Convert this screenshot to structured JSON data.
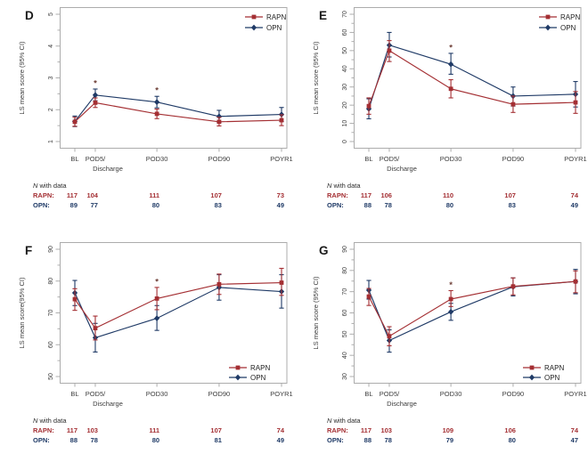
{
  "colors": {
    "rapn": "#A42F33",
    "opn": "#1F3A66",
    "axis": "#ACACAC",
    "tick_text": "#3D3D3D",
    "panel_letter": "#1A1A1A",
    "legend_text": "#1F1F1F",
    "n_title_text": "#2B2B2B",
    "asterisk": "#6F4038",
    "background": "#FFFFFF"
  },
  "legend": {
    "rapn_label": "RAPN",
    "opn_label": "OPN"
  },
  "n_with_data": {
    "title_italic": "N",
    "title_rest": " with data",
    "rapn_row_label": "RAPN:",
    "opn_row_label": "OPN:"
  },
  "chart_data": [
    {
      "type": "line",
      "panel_label": "D",
      "ylabel": "LS mean score (95% CI)",
      "ylim": [
        1,
        5
      ],
      "yticks": [
        1,
        2,
        3,
        4,
        5
      ],
      "minor_ticks": true,
      "x_tick_labels": [
        "BL",
        "POD5/",
        "POD30",
        "POD90",
        "POYR1"
      ],
      "x_sub_label": "Discharge",
      "x_positions": [
        0,
        0.099,
        0.397,
        0.698,
        1.0
      ],
      "grid": false,
      "legend_position": "top-right",
      "significant_x_indices": [
        1,
        2
      ],
      "series": [
        {
          "name": "RAPN",
          "marker": "square",
          "color_key": "rapn",
          "values": [
            1.62,
            2.22,
            1.87,
            1.62,
            1.67
          ],
          "ci_low": [
            1.48,
            2.07,
            1.72,
            1.49,
            1.5
          ],
          "ci_high": [
            1.76,
            2.37,
            2.02,
            1.76,
            1.84
          ],
          "n_with_data": [
            117,
            104,
            111,
            107,
            73
          ]
        },
        {
          "name": "OPN",
          "marker": "diamond",
          "color_key": "opn",
          "values": [
            1.63,
            2.46,
            2.24,
            1.79,
            1.85
          ],
          "ci_low": [
            1.47,
            2.28,
            2.06,
            1.6,
            1.63
          ],
          "ci_high": [
            1.8,
            2.65,
            2.42,
            1.98,
            2.07
          ],
          "n_with_data": [
            89,
            77,
            80,
            83,
            49
          ]
        }
      ]
    },
    {
      "type": "line",
      "panel_label": "E",
      "ylabel": "LS mean score (95% CI)",
      "ylim": [
        0,
        70
      ],
      "yticks": [
        0,
        10,
        20,
        30,
        40,
        50,
        60,
        70
      ],
      "minor_ticks": true,
      "x_tick_labels": [
        "BL",
        "POD5/",
        "POD30",
        "POD90",
        "POYR1"
      ],
      "x_sub_label": "Discharge",
      "x_positions": [
        0,
        0.099,
        0.397,
        0.698,
        1.0
      ],
      "grid": false,
      "legend_position": "top-right",
      "significant_x_indices": [
        2
      ],
      "series": [
        {
          "name": "RAPN",
          "marker": "square",
          "color_key": "rapn",
          "values": [
            19.5,
            50.0,
            29.0,
            20.5,
            21.5
          ],
          "ci_low": [
            15.0,
            44.0,
            24.0,
            16.0,
            15.5
          ],
          "ci_high": [
            24.0,
            55.5,
            34.0,
            25.0,
            27.5
          ],
          "n_with_data": [
            117,
            106,
            110,
            107,
            74
          ]
        },
        {
          "name": "OPN",
          "marker": "diamond",
          "color_key": "opn",
          "values": [
            18.0,
            53.0,
            42.5,
            25.0,
            26.0
          ],
          "ci_low": [
            12.5,
            46.5,
            37.0,
            19.5,
            19.0
          ],
          "ci_high": [
            23.5,
            60.0,
            48.5,
            30.0,
            33.0
          ],
          "n_with_data": [
            88,
            78,
            80,
            83,
            49
          ]
        }
      ]
    },
    {
      "type": "line",
      "panel_label": "F",
      "ylabel": "LS mean score(95% CI)",
      "ylim": [
        50,
        90
      ],
      "yticks": [
        50,
        60,
        70,
        80,
        90
      ],
      "minor_ticks": true,
      "x_tick_labels": [
        "BL",
        "POD5/",
        "POD30",
        "POD90",
        "POYR1"
      ],
      "x_sub_label": "Discharge",
      "x_positions": [
        0,
        0.099,
        0.397,
        0.698,
        1.0
      ],
      "grid": false,
      "legend_position": "bottom-right",
      "significant_x_indices": [
        2
      ],
      "series": [
        {
          "name": "RAPN",
          "marker": "square",
          "color_key": "rapn",
          "values": [
            74.3,
            65.2,
            74.5,
            79.0,
            79.5
          ],
          "ci_low": [
            70.8,
            61.5,
            71.0,
            75.8,
            75.5
          ],
          "ci_high": [
            77.6,
            69.0,
            78.0,
            82.2,
            84.0
          ],
          "n_with_data": [
            117,
            103,
            111,
            107,
            74
          ]
        },
        {
          "name": "OPN",
          "marker": "diamond",
          "color_key": "opn",
          "values": [
            76.3,
            62.2,
            68.3,
            78.0,
            76.7
          ],
          "ci_low": [
            72.3,
            57.7,
            64.5,
            74.0,
            71.5
          ],
          "ci_high": [
            80.2,
            66.7,
            72.3,
            82.0,
            82.0
          ],
          "n_with_data": [
            88,
            78,
            80,
            81,
            49
          ]
        }
      ]
    },
    {
      "type": "line",
      "panel_label": "G",
      "ylabel": "LS mean score (95% CI)",
      "ylim": [
        30,
        90
      ],
      "yticks": [
        30,
        40,
        50,
        60,
        70,
        80,
        90
      ],
      "minor_ticks": true,
      "x_tick_labels": [
        "BL",
        "POD5/",
        "POD30",
        "POD90",
        "POYR1"
      ],
      "x_sub_label": "Discharge",
      "x_positions": [
        0,
        0.099,
        0.397,
        0.698,
        1.0
      ],
      "grid": false,
      "legend_position": "bottom-right",
      "significant_x_indices": [
        2
      ],
      "series": [
        {
          "name": "RAPN",
          "marker": "square",
          "color_key": "rapn",
          "values": [
            67.7,
            49.0,
            66.5,
            72.5,
            74.8
          ],
          "ci_low": [
            63.5,
            44.5,
            63.0,
            68.5,
            69.5
          ],
          "ci_high": [
            71.5,
            53.5,
            70.5,
            76.5,
            79.8
          ],
          "n_with_data": [
            117,
            103,
            109,
            106,
            74
          ]
        },
        {
          "name": "OPN",
          "marker": "diamond",
          "color_key": "opn",
          "values": [
            70.7,
            47.0,
            60.5,
            72.3,
            74.8
          ],
          "ci_low": [
            66.5,
            41.5,
            56.5,
            68.0,
            69.0
          ],
          "ci_high": [
            75.3,
            52.0,
            64.5,
            76.5,
            80.5
          ],
          "n_with_data": [
            88,
            78,
            79,
            80,
            47
          ]
        }
      ]
    }
  ]
}
